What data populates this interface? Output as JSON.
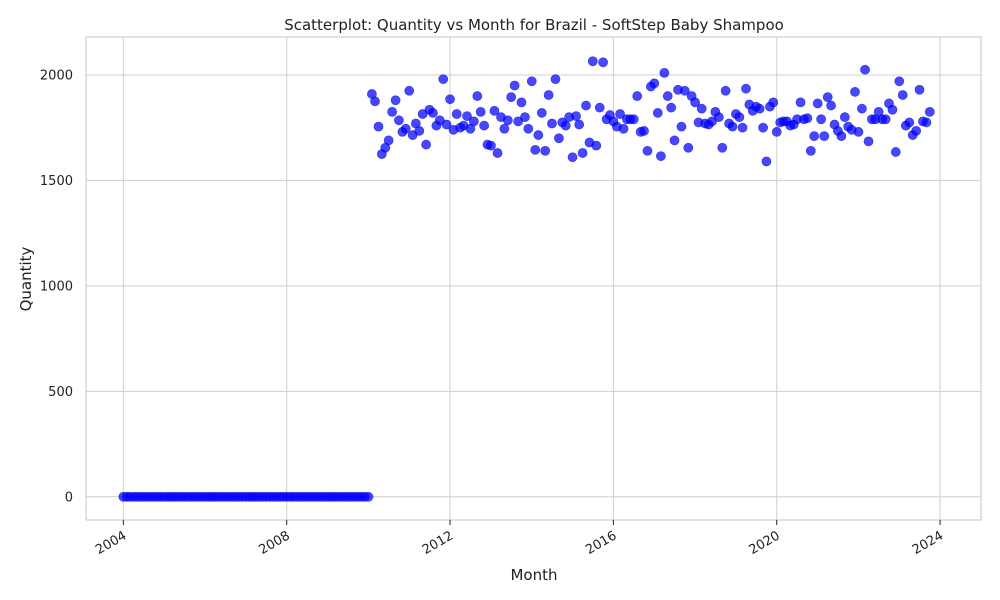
{
  "chart_data": {
    "type": "scatter",
    "title": "Scatterplot: Quantity vs Month for Brazil - SoftStep Baby Shampoo",
    "xlabel": "Month",
    "ylabel": "Quantity",
    "x_axis_type": "date",
    "xlim": [
      "2003-02-01",
      "2025-01-01"
    ],
    "ylim": [
      -110,
      2180
    ],
    "x_ticks": [
      "2004-01-01",
      "2008-01-01",
      "2012-01-01",
      "2016-01-01",
      "2020-01-01",
      "2024-01-01"
    ],
    "x_tick_labels": [
      "2004",
      "2008",
      "2012",
      "2016",
      "2020",
      "2024"
    ],
    "y_ticks": [
      0,
      500,
      1000,
      1500,
      2000
    ],
    "y_tick_labels": [
      "0",
      "500",
      "1000",
      "1500",
      "2000"
    ],
    "grid": true,
    "marker_color": "#0000ff",
    "series": [
      {
        "start_month": "2004-01",
        "values": [
          0,
          0,
          0,
          0,
          0,
          0,
          0,
          0,
          0,
          0,
          0,
          0,
          0,
          0,
          0,
          0,
          0,
          0,
          0,
          0,
          0,
          0,
          0,
          0,
          0,
          0,
          0,
          0,
          0,
          0,
          0,
          0,
          0,
          0,
          0,
          0,
          0,
          0,
          0,
          0,
          0,
          0,
          0,
          0,
          0,
          0,
          0,
          0,
          0,
          0,
          0,
          0,
          0,
          0,
          0,
          0,
          0,
          0,
          0,
          0,
          0,
          0,
          0,
          0,
          0,
          0,
          0,
          0,
          0,
          0,
          0,
          0,
          0,
          1910,
          1875,
          1755,
          1625,
          1655,
          1690,
          1825,
          1880,
          1785,
          1730,
          1745,
          1925,
          1715,
          1770,
          1735,
          1815,
          1670,
          1835,
          1820,
          1760,
          1785,
          1980,
          1765,
          1885,
          1740,
          1815,
          1750,
          1760,
          1805,
          1745,
          1780,
          1900,
          1825,
          1760,
          1670,
          1665,
          1830,
          1630,
          1800,
          1745,
          1785,
          1895,
          1950,
          1780,
          1870,
          1800,
          1745,
          1970,
          1645,
          1715,
          1820,
          1640,
          1905,
          1770,
          1980,
          1700,
          1775,
          1760,
          1800,
          1610,
          1805,
          1765,
          1630,
          1855,
          1680,
          2065,
          1665,
          1845,
          2060,
          1790,
          1810,
          1780,
          1755,
          1815,
          1745,
          1790,
          1790,
          1790,
          1900,
          1730,
          1735,
          1640,
          1945,
          1960,
          1820,
          1615,
          2010,
          1900,
          1845,
          1690,
          1930,
          1755,
          1925,
          1655,
          1900,
          1870,
          1775,
          1840,
          1770,
          1765,
          1780,
          1825,
          1800,
          1655,
          1925,
          1770,
          1755,
          1815,
          1800,
          1750,
          1935,
          1860,
          1830,
          1850,
          1840,
          1750,
          1590,
          1850,
          1870,
          1730,
          1775,
          1780,
          1780,
          1760,
          1765,
          1790,
          1870,
          1790,
          1795,
          1640,
          1710,
          1865,
          1790,
          1710,
          1895,
          1855,
          1765,
          1735,
          1710,
          1800,
          1755,
          1740,
          1920,
          1730,
          1840,
          2025,
          1685,
          1790,
          1790,
          1825,
          1790,
          1790,
          1865,
          1835,
          1635,
          1970,
          1905,
          1760,
          1775,
          1715,
          1735,
          1930,
          1780,
          1775,
          1825
        ]
      }
    ]
  }
}
